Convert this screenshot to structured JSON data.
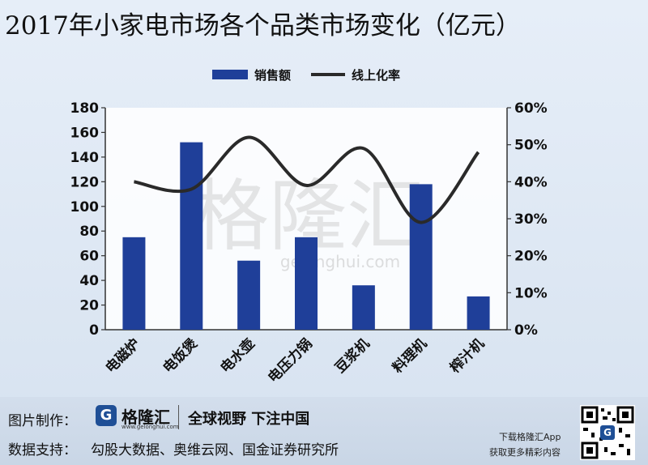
{
  "title": "2017年小家电市场各个品类市场变化（亿元）",
  "chart_data": {
    "type": "bar",
    "categories": [
      "电磁炉",
      "电饭煲",
      "电水壶",
      "电压力锅",
      "豆浆机",
      "料理机",
      "榨汁机"
    ],
    "series": [
      {
        "name": "销售额",
        "type": "bar",
        "axis": "left",
        "values": [
          75,
          152,
          56,
          75,
          36,
          118,
          27
        ],
        "color": "#1f3f99"
      },
      {
        "name": "线上化率",
        "type": "line",
        "axis": "right",
        "values": [
          40,
          38,
          52,
          39,
          49,
          29,
          48
        ],
        "color": "#2a2a2a"
      }
    ],
    "ylim_left": [
      0,
      180
    ],
    "yticks_left": [
      "0",
      "20",
      "40",
      "60",
      "80",
      "100",
      "120",
      "140",
      "160",
      "180"
    ],
    "ylim_right": [
      0,
      60
    ],
    "yticks_right": [
      "0%",
      "10%",
      "20%",
      "30%",
      "40%",
      "50%",
      "60%"
    ],
    "legend_position": "top",
    "grid": false
  },
  "watermark": {
    "main": "格隆汇",
    "url": "gelonghui.com"
  },
  "footer": {
    "credit_label": "图片制作：",
    "logo_mark": "G",
    "logo_name": "格隆汇",
    "logo_url": "www.gelonghui.com",
    "slogan": "全球视野 下注中国",
    "source_label": "数据支持：",
    "source_text": "勾股大数据、奥维云网、国金证券研究所",
    "app_line1": "下载格隆汇App",
    "app_line2": "获取更多精彩内容",
    "qr_mark": "G"
  }
}
